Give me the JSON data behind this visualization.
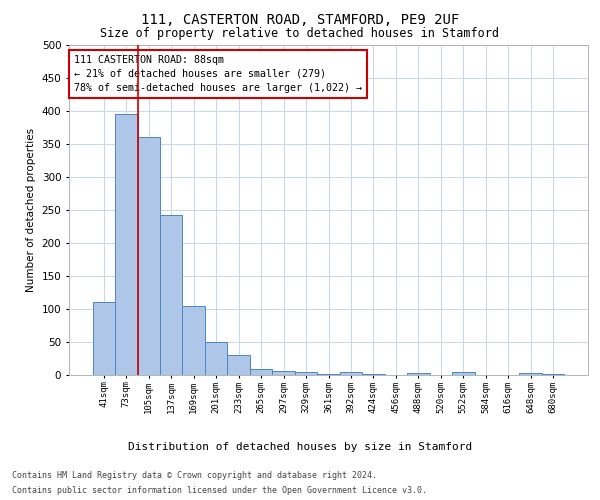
{
  "title": "111, CASTERTON ROAD, STAMFORD, PE9 2UF",
  "subtitle": "Size of property relative to detached houses in Stamford",
  "xlabel": "Distribution of detached houses by size in Stamford",
  "ylabel": "Number of detached properties",
  "bar_values": [
    110,
    395,
    360,
    243,
    105,
    50,
    31,
    9,
    6,
    4,
    1,
    5,
    1,
    0,
    3,
    0,
    4,
    0,
    0,
    3,
    2
  ],
  "bar_labels": [
    "41sqm",
    "73sqm",
    "105sqm",
    "137sqm",
    "169sqm",
    "201sqm",
    "233sqm",
    "265sqm",
    "297sqm",
    "329sqm",
    "361sqm",
    "392sqm",
    "424sqm",
    "456sqm",
    "488sqm",
    "520sqm",
    "552sqm",
    "584sqm",
    "616sqm",
    "648sqm",
    "680sqm"
  ],
  "bar_color": "#aec6e8",
  "bar_edge_color": "#4a86c8",
  "property_line_x": 1.5,
  "property_line_color": "#cc0000",
  "annotation_text": "111 CASTERTON ROAD: 88sqm\n← 21% of detached houses are smaller (279)\n78% of semi-detached houses are larger (1,022) →",
  "annotation_box_color": "#ffffff",
  "annotation_box_edge": "#cc0000",
  "ylim": [
    0,
    500
  ],
  "yticks": [
    0,
    50,
    100,
    150,
    200,
    250,
    300,
    350,
    400,
    450,
    500
  ],
  "footer_line1": "Contains HM Land Registry data © Crown copyright and database right 2024.",
  "footer_line2": "Contains public sector information licensed under the Open Government Licence v3.0.",
  "bg_color": "#ffffff",
  "grid_color": "#c8d4e8"
}
